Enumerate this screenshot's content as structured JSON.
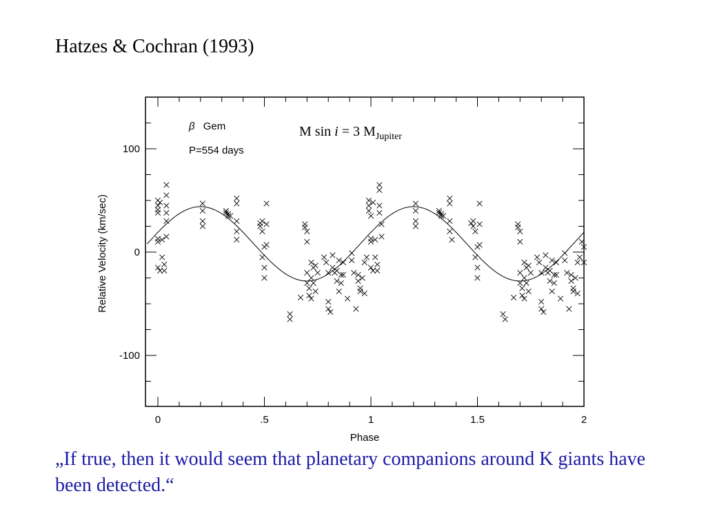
{
  "slide": {
    "title": "Hatzes & Cochran (1993)",
    "quote": "„If true, then it would seem that planetary companions around K giants have been detected.“"
  },
  "chart_data": {
    "type": "scatter",
    "title": "",
    "xlabel": "Phase",
    "ylabel": "Relative Velocity (km/sec)",
    "xlim": [
      -0.05,
      2.0
    ],
    "ylim": [
      -150,
      150
    ],
    "xticks": [
      {
        "value": 0,
        "label": "0"
      },
      {
        "value": 0.5,
        "label": ".5"
      },
      {
        "value": 1,
        "label": "1"
      },
      {
        "value": 1.5,
        "label": "1.5"
      },
      {
        "value": 2,
        "label": "2"
      }
    ],
    "yticks": [
      {
        "value": 100,
        "label": "100"
      },
      {
        "value": 0,
        "label": "0"
      },
      {
        "value": -100,
        "label": "-100"
      }
    ],
    "annotations": {
      "star_symbol": "β",
      "star_name": "Gem",
      "period": "P=554 days",
      "mass_prefix": "M sin ",
      "mass_italic": "i",
      "mass_mid": " = 3 M",
      "mass_sub": "Jupiter"
    },
    "model_curve": {
      "offset": 8,
      "amplitude": 36,
      "peak_phase": 0.2
    },
    "series": [
      {
        "marker": "x",
        "points": [
          [
            0.0,
            50
          ],
          [
            0.0,
            45
          ],
          [
            0.0,
            41
          ],
          [
            0.0,
            38
          ],
          [
            0.0,
            13
          ],
          [
            0.0,
            10
          ],
          [
            0.0,
            -15
          ],
          [
            0.01,
            -18
          ],
          [
            0.01,
            48
          ],
          [
            0.02,
            12
          ],
          [
            0.02,
            -5
          ],
          [
            0.03,
            -12
          ],
          [
            0.03,
            -18
          ],
          [
            0.04,
            65
          ],
          [
            0.04,
            55
          ],
          [
            0.04,
            45
          ],
          [
            0.04,
            38
          ],
          [
            0.04,
            30
          ],
          [
            0.04,
            15
          ],
          [
            0.21,
            47
          ],
          [
            0.21,
            40
          ],
          [
            0.21,
            30
          ],
          [
            0.21,
            25
          ],
          [
            0.32,
            40
          ],
          [
            0.32,
            38
          ],
          [
            0.33,
            35
          ],
          [
            0.33,
            37
          ],
          [
            0.34,
            35
          ],
          [
            0.37,
            52
          ],
          [
            0.37,
            47
          ],
          [
            0.37,
            30
          ],
          [
            0.37,
            20
          ],
          [
            0.37,
            12
          ],
          [
            0.48,
            28
          ],
          [
            0.48,
            25
          ],
          [
            0.49,
            30
          ],
          [
            0.49,
            20
          ],
          [
            0.49,
            -5
          ],
          [
            0.5,
            5
          ],
          [
            0.5,
            -15
          ],
          [
            0.5,
            -25
          ],
          [
            0.51,
            47
          ],
          [
            0.51,
            27
          ],
          [
            0.51,
            7
          ],
          [
            0.62,
            -60
          ],
          [
            0.62,
            -65
          ],
          [
            0.69,
            27
          ],
          [
            0.69,
            24
          ],
          [
            0.7,
            20
          ],
          [
            0.7,
            10
          ],
          [
            0.7,
            -20
          ],
          [
            0.7,
            -30
          ],
          [
            0.71,
            -35
          ],
          [
            0.71,
            -42
          ],
          [
            0.72,
            -45
          ],
          [
            0.72,
            -10
          ],
          [
            0.72,
            -25
          ],
          [
            0.73,
            -15
          ],
          [
            0.73,
            -30
          ],
          [
            0.74,
            -38
          ],
          [
            0.74,
            -13
          ],
          [
            0.75,
            -20
          ],
          [
            0.67,
            -44
          ],
          [
            0.78,
            -5
          ],
          [
            0.79,
            -10
          ],
          [
            0.8,
            -48
          ],
          [
            0.8,
            -55
          ],
          [
            0.8,
            -20
          ],
          [
            0.81,
            -58
          ],
          [
            0.82,
            -3
          ],
          [
            0.82,
            -15
          ],
          [
            0.83,
            -20
          ],
          [
            0.84,
            -18
          ],
          [
            0.84,
            -28
          ],
          [
            0.85,
            -38
          ],
          [
            0.85,
            -8
          ],
          [
            0.86,
            -22
          ],
          [
            0.86,
            -30
          ],
          [
            0.87,
            -10
          ],
          [
            0.87,
            -22
          ],
          [
            0.89,
            -45
          ],
          [
            0.91,
            -8
          ],
          [
            0.91,
            -1
          ],
          [
            0.92,
            -20
          ],
          [
            0.93,
            -55
          ],
          [
            0.94,
            -22
          ],
          [
            0.94,
            -28
          ],
          [
            0.95,
            -35
          ],
          [
            0.95,
            -38
          ],
          [
            0.96,
            -25
          ],
          [
            0.97,
            -40
          ],
          [
            0.97,
            -10
          ],
          [
            0.98,
            -5
          ],
          [
            0.99,
            50
          ],
          [
            0.99,
            45
          ],
          [
            0.99,
            40
          ],
          [
            1.0,
            35
          ],
          [
            1.0,
            13
          ],
          [
            1.0,
            10
          ],
          [
            1.0,
            -15
          ],
          [
            1.01,
            -18
          ],
          [
            1.01,
            48
          ],
          [
            1.02,
            12
          ],
          [
            1.02,
            -5
          ],
          [
            1.03,
            -12
          ],
          [
            1.03,
            -18
          ],
          [
            1.04,
            65
          ],
          [
            1.04,
            60
          ],
          [
            1.04,
            45
          ],
          [
            1.04,
            38
          ],
          [
            1.05,
            27
          ],
          [
            1.05,
            15
          ],
          [
            1.21,
            47
          ],
          [
            1.21,
            40
          ],
          [
            1.21,
            30
          ],
          [
            1.21,
            25
          ],
          [
            1.32,
            40
          ],
          [
            1.32,
            38
          ],
          [
            1.33,
            35
          ],
          [
            1.33,
            37
          ],
          [
            1.34,
            35
          ],
          [
            1.37,
            52
          ],
          [
            1.37,
            47
          ],
          [
            1.37,
            30
          ],
          [
            1.37,
            20
          ],
          [
            1.38,
            12
          ],
          [
            1.47,
            28
          ],
          [
            1.48,
            25
          ],
          [
            1.48,
            30
          ],
          [
            1.49,
            20
          ],
          [
            1.49,
            -5
          ],
          [
            1.5,
            5
          ],
          [
            1.5,
            -15
          ],
          [
            1.5,
            -25
          ],
          [
            1.51,
            47
          ],
          [
            1.51,
            27
          ],
          [
            1.51,
            7
          ],
          [
            1.62,
            -60
          ],
          [
            1.63,
            -65
          ],
          [
            1.69,
            27
          ],
          [
            1.69,
            24
          ],
          [
            1.7,
            20
          ],
          [
            1.7,
            10
          ],
          [
            1.7,
            -20
          ],
          [
            1.7,
            -30
          ],
          [
            1.71,
            -35
          ],
          [
            1.71,
            -42
          ],
          [
            1.72,
            -45
          ],
          [
            1.72,
            -10
          ],
          [
            1.72,
            -25
          ],
          [
            1.73,
            -15
          ],
          [
            1.73,
            -30
          ],
          [
            1.74,
            -38
          ],
          [
            1.74,
            -13
          ],
          [
            1.75,
            -20
          ],
          [
            1.67,
            -44
          ],
          [
            1.78,
            -5
          ],
          [
            1.79,
            -10
          ],
          [
            1.8,
            -48
          ],
          [
            1.8,
            -55
          ],
          [
            1.8,
            -20
          ],
          [
            1.81,
            -58
          ],
          [
            1.82,
            -3
          ],
          [
            1.82,
            -15
          ],
          [
            1.83,
            -20
          ],
          [
            1.84,
            -18
          ],
          [
            1.84,
            -28
          ],
          [
            1.85,
            -38
          ],
          [
            1.85,
            -8
          ],
          [
            1.86,
            -22
          ],
          [
            1.86,
            -30
          ],
          [
            1.87,
            -10
          ],
          [
            1.87,
            -22
          ],
          [
            1.89,
            -45
          ],
          [
            1.91,
            -8
          ],
          [
            1.91,
            -1
          ],
          [
            1.92,
            -20
          ],
          [
            1.93,
            -55
          ],
          [
            1.94,
            -22
          ],
          [
            1.94,
            -28
          ],
          [
            1.95,
            -35
          ],
          [
            1.95,
            -38
          ],
          [
            1.96,
            -25
          ],
          [
            1.97,
            -40
          ],
          [
            1.97,
            -10
          ],
          [
            1.98,
            -5
          ],
          [
            1.99,
            10
          ],
          [
            2.0,
            5
          ],
          [
            2.0,
            -10
          ]
        ]
      }
    ]
  }
}
